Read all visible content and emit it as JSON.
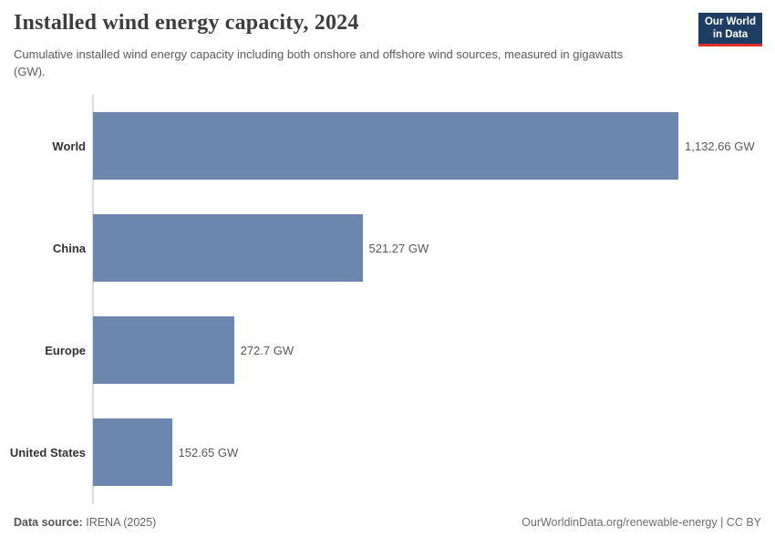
{
  "header": {
    "title": "Installed wind energy capacity, 2024",
    "subtitle": "Cumulative installed wind energy capacity including both onshore and offshore wind sources, measured in gigawatts (GW).",
    "logo": {
      "line1": "Our World",
      "line2": "in Data"
    }
  },
  "chart_data": {
    "type": "bar",
    "orientation": "horizontal",
    "title": "Installed wind energy capacity, 2024",
    "xlabel": "",
    "ylabel": "",
    "unit": "GW",
    "categories": [
      "World",
      "China",
      "Europe",
      "United States"
    ],
    "values": [
      1132.66,
      521.27,
      272.7,
      152.65
    ],
    "value_labels": [
      "1,132.66 GW",
      "521.27 GW",
      "272.7 GW",
      "152.65 GW"
    ],
    "xlim": [
      0,
      1132.66
    ],
    "grid": false,
    "legend": "none"
  },
  "footer": {
    "source_label": "Data source:",
    "source_value": "IRENA (2025)",
    "link_text": "OurWorldinData.org/renewable-energy | CC BY"
  },
  "colors": {
    "bar": "#6c87ae",
    "axis": "#dcdcdc",
    "logo_bg": "#1d3d63",
    "logo_accent": "#e0322c",
    "title_text": "#3d3d3d",
    "subtitle_text": "#5b5b5b"
  }
}
